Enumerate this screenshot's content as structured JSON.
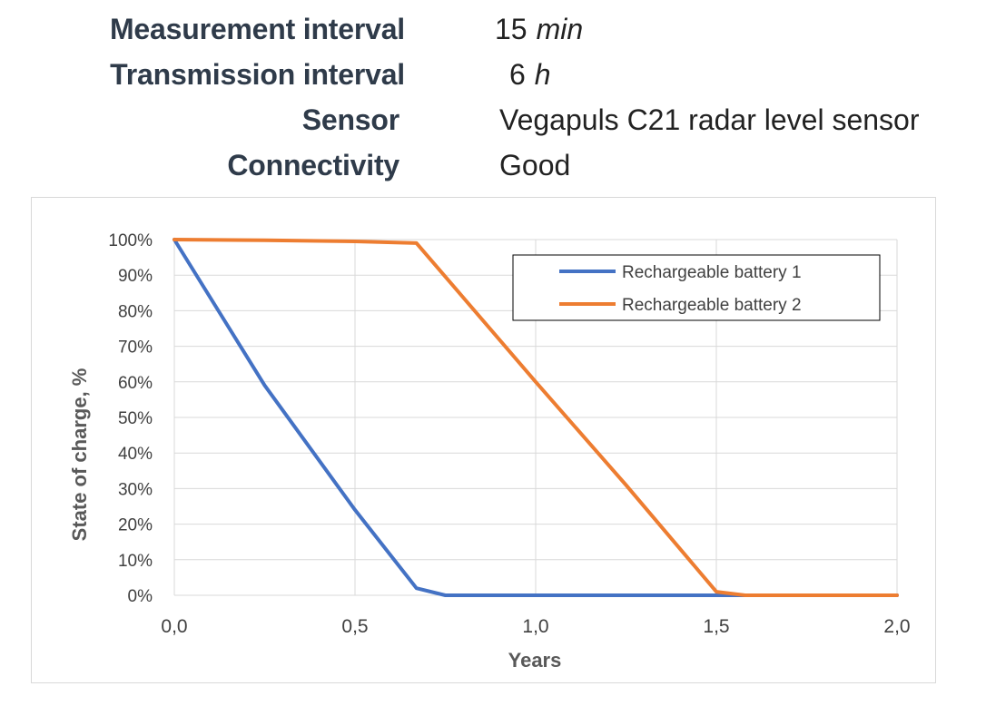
{
  "info": {
    "measurement_label": "Measurement interval",
    "measurement_value": "15",
    "measurement_unit": "min",
    "transmission_label": "Transmission interval",
    "transmission_value": "6",
    "transmission_unit": "h",
    "sensor_label": "Sensor",
    "sensor_value": "Vegapuls C21 radar level sensor",
    "connectivity_label": "Connectivity",
    "connectivity_value": "Good"
  },
  "chart_data": {
    "type": "line",
    "xlabel": "Years",
    "ylabel": "State of charge, %",
    "xlim": [
      0,
      2
    ],
    "ylim": [
      0,
      100
    ],
    "xticks": [
      0,
      0.5,
      1,
      1.5,
      2
    ],
    "xtick_labels": [
      "0,0",
      "0,5",
      "1,0",
      "1,5",
      "2,0"
    ],
    "yticks": [
      0,
      10,
      20,
      30,
      40,
      50,
      60,
      70,
      80,
      90,
      100
    ],
    "ytick_labels": [
      "0%",
      "10%",
      "20%",
      "30%",
      "40%",
      "50%",
      "60%",
      "70%",
      "80%",
      "90%",
      "100%"
    ],
    "grid": true,
    "legend_position": "top-right",
    "series": [
      {
        "name": "Rechargeable battery 1",
        "color": "#4472c4",
        "x": [
          0,
          0.25,
          0.5,
          0.67,
          0.75,
          1.5,
          2.0
        ],
        "y": [
          100,
          59,
          24,
          2,
          0,
          0,
          0
        ]
      },
      {
        "name": "Rechargeable battery 2",
        "color": "#ed7d31",
        "x": [
          0,
          0.25,
          0.5,
          0.67,
          1.0,
          1.25,
          1.5,
          1.58,
          2.0
        ],
        "y": [
          100,
          99.8,
          99.5,
          99,
          60,
          31,
          1,
          0,
          0
        ]
      }
    ]
  }
}
